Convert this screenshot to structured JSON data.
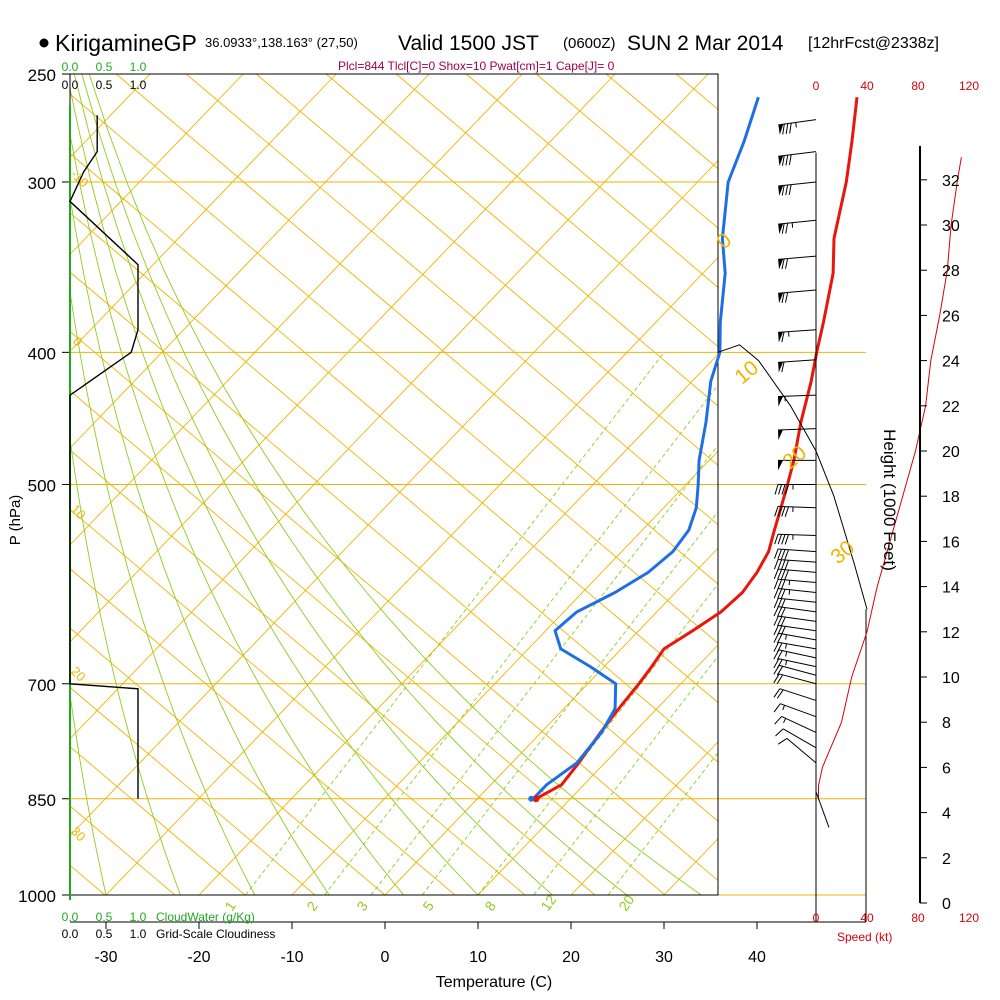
{
  "header": {
    "station": "KirigamineGP",
    "coords": "36.0933°,138.163° (27,50)",
    "valid": "Valid 1500 JST",
    "zulu": "(0600Z)",
    "date": "SUN 2 Mar 2014",
    "forecast": "[12hrFcst@2338z]",
    "indices": "Plcl=844 Tlcl[C]=0 Shox=10 Pwat[cm]=1 Cape[J]= 0"
  },
  "colors": {
    "temperature": "#e8160c",
    "dewpoint": "#1e6fe6",
    "isobar": "#f0b400",
    "dry_adiabat": "#f0b400",
    "moist_adiabat": "#8fcc1e",
    "mixing_ratio": "#8fcc1e",
    "cloud_water": "#1fa81f",
    "wind_speed": "#d8000c",
    "indices": "#a0004a"
  },
  "chart_data": {
    "type": "line",
    "title": "KirigamineGP Valid 1500 JST SUN 2 Mar 2014",
    "xlabel": "Temperature (C)",
    "ylabel": "P (hPa)",
    "x_ticks": [
      "-30",
      "-20",
      "-10",
      "0",
      "10",
      "20",
      "30",
      "40"
    ],
    "pressure_levels": [
      250,
      300,
      400,
      500,
      700,
      850,
      1000
    ],
    "pressure_labels": [
      "250",
      "300",
      "400",
      "500",
      "700",
      "850",
      "1000"
    ],
    "temperature_profile": {
      "name": "Temperature",
      "pressure": [
        850,
        830,
        800,
        760,
        730,
        700,
        680,
        660,
        640,
        620,
        600,
        580,
        560,
        540,
        520,
        500,
        480,
        450,
        420,
        400,
        380,
        350,
        330,
        300,
        280,
        260
      ],
      "values": [
        6.3,
        7.6,
        7.2,
        6.4,
        5.9,
        5.5,
        5.1,
        4.6,
        5.8,
        6.9,
        7.2,
        6.7,
        5.8,
        4.2,
        2.6,
        0.9,
        -0.9,
        -4.1,
        -7.2,
        -9.6,
        -12.0,
        -16.0,
        -19.5,
        -24.0,
        -27.6,
        -31.6
      ]
    },
    "dewpoint_profile": {
      "name": "Dewpoint",
      "pressure": [
        850,
        830,
        800,
        760,
        730,
        700,
        680,
        660,
        640,
        620,
        600,
        580,
        560,
        540,
        520,
        500,
        480,
        450,
        420,
        400,
        380,
        350,
        330,
        300,
        280,
        260
      ],
      "values": [
        6.0,
        6.0,
        7.0,
        6.5,
        5.5,
        3.0,
        -1.5,
        -6.5,
        -9.0,
        -8.6,
        -6.5,
        -5.0,
        -4.5,
        -5.0,
        -6.5,
        -8.7,
        -11.1,
        -14.3,
        -18.0,
        -20.0,
        -23.1,
        -27.6,
        -31.5,
        -36.7,
        -39.2,
        -42.2
      ]
    },
    "dry_adiabat_labels": [
      "30",
      "20",
      "10",
      "0",
      "-10",
      "-20",
      "-30"
    ],
    "right_adiabat_labels": [
      "0",
      "10",
      "20",
      "30"
    ],
    "mixing_ratio_labels": [
      "1",
      "2",
      "3",
      "5",
      "8",
      "12",
      "20"
    ],
    "cloud_water_scale": [
      "0.0",
      "0.5",
      "1.0"
    ],
    "cloud_water_label": "CloudWater (g/Kg)",
    "cloudiness_scale": [
      "0.0",
      "0.5",
      "1.0"
    ],
    "cloudiness_label": "Grid-Scale Cloudiness",
    "cloudiness_profile": {
      "pressure": [
        850,
        706,
        700,
        690,
        430,
        400,
        385,
        350,
        345,
        310,
        295,
        285,
        268
      ],
      "values": [
        1.0,
        1.0,
        0.0,
        0.0,
        0.0,
        0.9,
        1.0,
        1.0,
        1.0,
        0.0,
        0.2,
        0.4,
        0.4
      ]
    },
    "wind_speed_ticks": [
      "0",
      "40",
      "80",
      "120"
    ],
    "wind_speed_label": "Speed (kt)",
    "wind_speed_profile": {
      "height_kft": [
        4.6,
        5.2,
        6.0,
        8.0,
        10.0,
        12.0,
        14.0,
        16.0,
        18.0,
        20.0,
        22.0,
        24.0,
        26.0,
        28.0,
        30.0,
        32.0,
        33.0
      ],
      "speed_kt": [
        2,
        2,
        5,
        20,
        28,
        40,
        48,
        58,
        68,
        78,
        86,
        90,
        97,
        103,
        106,
        111,
        114
      ]
    },
    "wind_range_outline": {
      "height_kft": [
        13.0,
        15.0,
        18.0,
        20.0,
        22.0,
        24.0,
        24.7
      ],
      "max_kt": [
        40,
        30,
        14,
        0,
        -20,
        -45,
        -60
      ]
    },
    "wind_barbs": {
      "pressure": [
        840,
        800,
        780,
        760,
        740,
        720,
        700,
        690,
        680,
        670,
        660,
        650,
        640,
        630,
        620,
        610,
        600,
        590,
        580,
        570,
        560,
        545,
        520,
        500,
        480,
        455,
        430,
        405,
        385,
        360,
        340,
        320,
        300,
        285,
        270
      ],
      "direction_deg": [
        20,
        230,
        240,
        245,
        250,
        252,
        255,
        255,
        258,
        258,
        260,
        260,
        262,
        262,
        262,
        264,
        264,
        265,
        265,
        266,
        266,
        268,
        268,
        270,
        270,
        272,
        272,
        274,
        274,
        275,
        275,
        276,
        276,
        277,
        278
      ],
      "speed_kt": [
        2,
        10,
        12,
        15,
        17,
        19,
        20,
        22,
        23,
        25,
        26,
        27,
        28,
        29,
        30,
        32,
        34,
        36,
        38,
        40,
        42,
        44,
        45,
        46,
        48,
        52,
        56,
        60,
        65,
        70,
        72,
        74,
        78,
        80,
        85
      ]
    },
    "height_axis_label": "Height (1000 Feet)",
    "height_ticks_kft": [
      0,
      2,
      4,
      6,
      8,
      10,
      12,
      14,
      16,
      18,
      20,
      22,
      24,
      26,
      28,
      30,
      32
    ],
    "height_tick_labels": [
      "0",
      "2",
      "4",
      "6",
      "8",
      "10",
      "12",
      "14",
      "16",
      "18",
      "20",
      "22",
      "24",
      "26",
      "28",
      "30",
      "32"
    ],
    "xlim": [
      -34,
      36
    ],
    "ylim": [
      250,
      1000
    ],
    "height_range_kft": [
      0,
      33
    ]
  }
}
